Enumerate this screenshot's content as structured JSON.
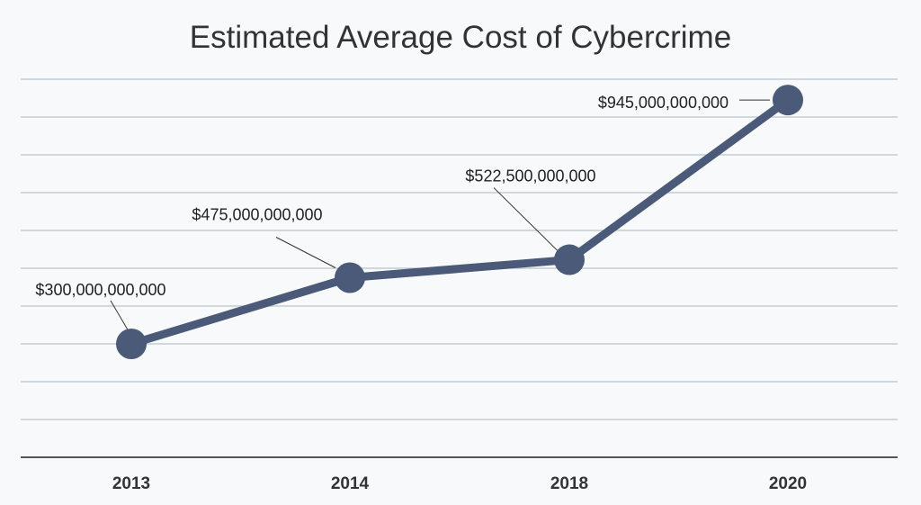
{
  "chart_data": {
    "type": "line",
    "title": "Estimated Average Cost of Cybercrime",
    "categories": [
      "2013",
      "2014",
      "2018",
      "2020"
    ],
    "values": [
      300000000000,
      475000000000,
      522500000000,
      945000000000
    ],
    "data_labels": [
      "$300,000,000,000",
      "$475,000,000,000",
      "$522,500,000,000",
      "$945,000,000,000"
    ],
    "xlabel": "",
    "ylabel": "",
    "ylim": [
      0,
      1000000000000
    ],
    "grid": true,
    "legend": "none",
    "colors": {
      "line": "#4a5a78",
      "grid": "#b8c4cc",
      "axis": "#555555",
      "background": "#f8f9fa",
      "text": "#333333"
    }
  }
}
